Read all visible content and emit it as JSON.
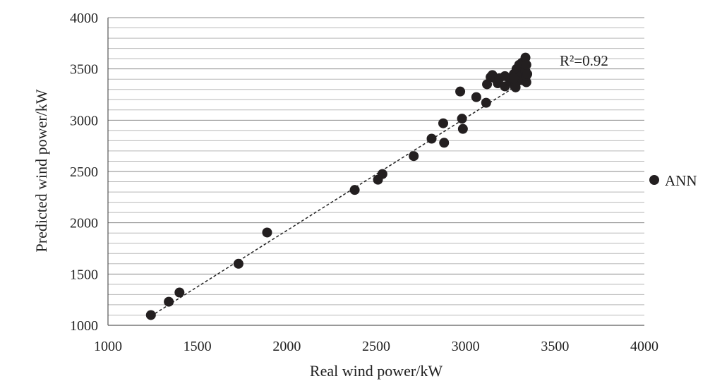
{
  "chart_data": {
    "type": "scatter",
    "xlabel": "Real wind power/kW",
    "ylabel": "Predicted wind power/kW",
    "xlim": [
      1000,
      4000
    ],
    "ylim": [
      1000,
      4000
    ],
    "x_ticks": [
      "1000",
      "1500",
      "2000",
      "2500",
      "3000",
      "3500",
      "4000"
    ],
    "y_ticks": [
      "1000",
      "1500",
      "2000",
      "2500",
      "3000",
      "3500",
      "4000"
    ],
    "grid": true,
    "legend_position": "right",
    "annotation": "R²=0.92",
    "trendline": {
      "style": "dashed",
      "from": [
        1240,
        1090
      ],
      "to": [
        3340,
        3395
      ]
    },
    "series": [
      {
        "name": "ANN",
        "color": "#231f20",
        "points": [
          [
            1240,
            1100
          ],
          [
            1340,
            1230
          ],
          [
            1400,
            1320
          ],
          [
            1730,
            1600
          ],
          [
            1890,
            1905
          ],
          [
            2380,
            2320
          ],
          [
            2510,
            2420
          ],
          [
            2535,
            2475
          ],
          [
            2710,
            2650
          ],
          [
            2810,
            2820
          ],
          [
            2875,
            2970
          ],
          [
            2880,
            2780
          ],
          [
            2970,
            3280
          ],
          [
            2980,
            3015
          ],
          [
            2985,
            2915
          ],
          [
            3060,
            3225
          ],
          [
            3115,
            3170
          ],
          [
            3120,
            3350
          ],
          [
            3140,
            3420
          ],
          [
            3150,
            3440
          ],
          [
            3170,
            3400
          ],
          [
            3180,
            3360
          ],
          [
            3190,
            3410
          ],
          [
            3220,
            3430
          ],
          [
            3220,
            3330
          ],
          [
            3250,
            3380
          ],
          [
            3260,
            3400
          ],
          [
            3270,
            3450
          ],
          [
            3275,
            3330
          ],
          [
            3280,
            3360
          ],
          [
            3285,
            3500
          ],
          [
            3290,
            3380
          ],
          [
            3300,
            3410
          ],
          [
            3300,
            3540
          ],
          [
            3310,
            3430
          ],
          [
            3315,
            3560
          ],
          [
            3320,
            3390
          ],
          [
            3325,
            3450
          ],
          [
            3330,
            3580
          ],
          [
            3335,
            3610
          ],
          [
            3335,
            3480
          ],
          [
            3340,
            3540
          ],
          [
            3340,
            3370
          ],
          [
            3338,
            3430
          ],
          [
            3345,
            3450
          ],
          [
            3280,
            3320
          ],
          [
            3270,
            3410
          ]
        ]
      }
    ]
  }
}
